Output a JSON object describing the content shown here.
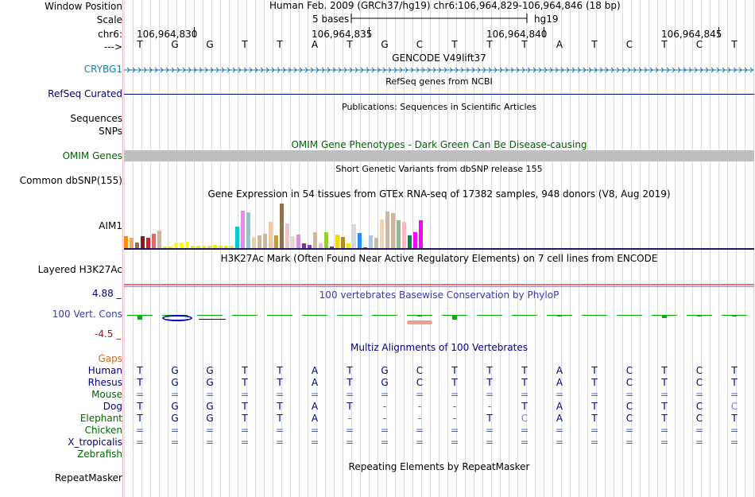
{
  "header": {
    "window_position_label": "Window Position",
    "position_text": "Human Feb. 2009 (GRCh37/hg19)   chr6:106,964,829-106,964,846 (18 bp)",
    "scale_label": "Scale",
    "scale_bar_label": "5 bases",
    "assembly": "hg19",
    "chrom_label": "chr6:",
    "strand_label": "--->",
    "ticks": [
      "106,964,830",
      "106,964,835",
      "106,964,840",
      "106,964,845"
    ]
  },
  "sequence": [
    "T",
    "G",
    "G",
    "T",
    "T",
    "A",
    "T",
    "G",
    "C",
    "T",
    "T",
    "T",
    "A",
    "T",
    "C",
    "T",
    "C",
    "T"
  ],
  "tracks": {
    "gencode": {
      "title": "GENCODE V49lift37",
      "gene_label": "CRYBG1"
    },
    "refseq": {
      "title": "RefSeq genes from NCBI",
      "label": "RefSeq Curated"
    },
    "publications": {
      "title": "Publications: Sequences in Scientific Articles",
      "label_line1": "Sequences",
      "label_line2": "SNPs"
    },
    "omim": {
      "title": "OMIM Gene Phenotypes - Dark Green Can Be Disease-causing",
      "label": "OMIM Genes"
    },
    "dbsnp": {
      "title": "Short Genetic Variants from dbSNP release 155",
      "label": "Common dbSNP(155)"
    },
    "gtex": {
      "title": "Gene Expression in 54 tissues from GTEx RNA-seq of 17382 samples, 948 donors (V8, Aug 2019)",
      "label": "AIM1"
    },
    "h3k27ac": {
      "title": "H3K27Ac Mark (Often Found Near Active Regulatory Elements) on 7 cell lines from ENCODE",
      "label": "Layered H3K27Ac"
    },
    "phylop": {
      "title": "100 vertebrates Basewise Conservation by PhyloP",
      "label": "100 Vert. Cons",
      "max_label": "4.88 _",
      "min_label": "-4.5 _"
    },
    "multiz": {
      "title": "Multiz Alignments of 100 Vertebrates"
    },
    "repeatmasker": {
      "title": "Repeating Elements by RepeatMasker",
      "label": "RepeatMasker"
    }
  },
  "alignment": {
    "gaps_label": "Gaps",
    "species": [
      {
        "name": "Human",
        "color": "#000080",
        "bases": [
          "T",
          "G",
          "G",
          "T",
          "T",
          "A",
          "T",
          "G",
          "C",
          "T",
          "T",
          "T",
          "A",
          "T",
          "C",
          "T",
          "C",
          "T"
        ]
      },
      {
        "name": "Rhesus",
        "color": "#000080",
        "bases": [
          "T",
          "G",
          "G",
          "T",
          "T",
          "A",
          "T",
          "G",
          "C",
          "T",
          "T",
          "T",
          "A",
          "T",
          "C",
          "T",
          "C",
          "T"
        ]
      },
      {
        "name": "Mouse",
        "color": "#006400",
        "bases": [
          "=",
          "=",
          "=",
          "=",
          "=",
          "=",
          "=",
          "=",
          "=",
          "=",
          "=",
          "=",
          "=",
          "=",
          "=",
          "=",
          "=",
          "="
        ]
      },
      {
        "name": "Dog",
        "color": "#000080",
        "bases": [
          "T",
          "G",
          "G",
          "T",
          "T",
          "A",
          "T",
          "-",
          "-",
          "-",
          "-",
          "T",
          "A",
          "T",
          "C",
          "T",
          "C",
          "C"
        ]
      },
      {
        "name": "Elephant",
        "color": "#006400",
        "bases": [
          "T",
          "G",
          "G",
          "T",
          "T",
          "A",
          "-",
          "-",
          "-",
          "-",
          "T",
          "C",
          "A",
          "T",
          "C",
          "T",
          "C",
          "T"
        ]
      },
      {
        "name": "Chicken",
        "color": "#006400",
        "bases": [
          "=",
          "=",
          "=",
          "=",
          "=",
          "=",
          "=",
          "=",
          "=",
          "=",
          "=",
          "=",
          "=",
          "=",
          "=",
          "=",
          "=",
          "="
        ]
      },
      {
        "name": "X_tropicalis",
        "color": "#000080",
        "bases": [
          "=",
          "=",
          "=",
          "=",
          "=",
          "=",
          "=",
          "=",
          "=",
          "=",
          "=",
          "=",
          "=",
          "=",
          "=",
          "=",
          "=",
          "="
        ]
      },
      {
        "name": "Zebrafish",
        "color": "#006400",
        "bases": [
          "",
          "",
          "",
          "",
          "",
          "",
          "",
          "",
          "",
          "",
          "",
          "",
          "",
          "",
          "",
          "",
          "",
          ""
        ]
      }
    ]
  },
  "gtex_values": [
    16,
    13,
    7,
    15,
    13,
    19,
    23,
    2,
    2,
    7,
    7,
    8,
    3,
    3,
    3,
    3,
    4,
    3,
    3,
    3,
    28,
    49,
    47,
    14,
    17,
    19,
    34,
    17,
    58,
    32,
    16,
    18,
    6,
    4,
    21,
    6,
    21,
    2,
    18,
    14,
    6,
    31,
    20,
    1,
    17,
    13,
    37,
    48,
    46,
    36,
    34,
    17,
    21,
    36
  ],
  "gtex_colors": [
    "#ff8c00",
    "#ffa54f",
    "#8b7355",
    "#8b1a1a",
    "#cd2626",
    "#ee6363",
    "#cdb79e",
    "#eeee00",
    "#eeee00",
    "#ffff00",
    "#ffff00",
    "#ffff00",
    "#eeee00",
    "#eeee00",
    "#eeee00",
    "#eeee00",
    "#eeee00",
    "#eeee00",
    "#eeee00",
    "#eeee00",
    "#00cdcd",
    "#ee82ee",
    "#9ac0cd",
    "#eecfa1",
    "#cdb79e",
    "#cdb79e",
    "#eecba6",
    "#cd9b1d",
    "#8b7355",
    "#f4c2c2",
    "#eed5d2",
    "#ee82ee",
    "#7a378b",
    "#9932cc",
    "#cdb79e",
    "#ffb6c1",
    "#9acd32",
    "#7a378b",
    "#ffd700",
    "#cd8500",
    "#eeee00",
    "#d9d9d9",
    "#1e90ff",
    "#3a5fcd",
    "#b0c4de",
    "#cdb79e",
    "#eed5b7",
    "#cdb79e",
    "#cdb79e",
    "#8fbc8f",
    "#ffb6c1",
    "#008b45",
    "#ff00ff",
    "#ff00ff"
  ],
  "phylop_values": [
    0.6,
    0,
    0,
    0,
    0,
    0,
    0,
    0,
    0.2,
    0.6,
    0,
    0,
    0.2,
    0,
    0,
    0.4,
    0.2,
    0.2
  ],
  "colors": {
    "blue_label": "#000080",
    "green_label": "#006400",
    "gene_blue": "#0000cc",
    "gaps": "#d2691e",
    "omim_bar": "#bebebe"
  }
}
